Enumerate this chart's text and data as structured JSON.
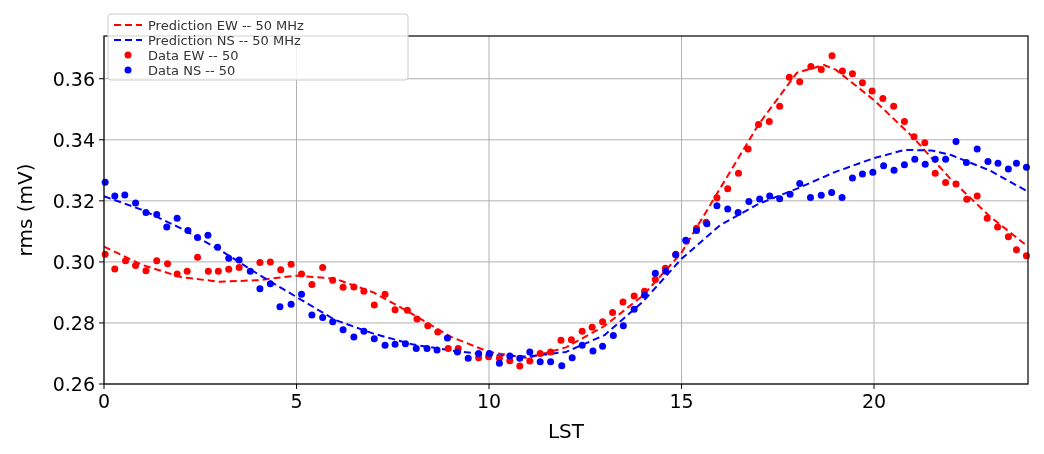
{
  "chart_data": {
    "type": "line",
    "xlabel": "LST",
    "ylabel": "rms (mV)",
    "xlim": [
      0,
      24
    ],
    "ylim": [
      0.26,
      0.374
    ],
    "xticks": [
      0,
      5,
      10,
      15,
      20
    ],
    "yticks": [
      {
        "value": 0.26,
        "label": "0.26"
      },
      {
        "value": 0.28,
        "label": "0.28"
      },
      {
        "value": 0.3,
        "label": "0.30"
      },
      {
        "value": 0.32,
        "label": "0.32"
      },
      {
        "value": 0.34,
        "label": "0.34"
      },
      {
        "value": 0.36,
        "label": "0.36"
      }
    ],
    "grid": true,
    "legend": "top left",
    "series": [
      {
        "name": "Prediction EW -- 50 MHz",
        "type": "line",
        "line_style": "dashed",
        "color": "#ff0000",
        "x": [
          0,
          1,
          2,
          3,
          4,
          5,
          6,
          7,
          8,
          9,
          10,
          11,
          12,
          13,
          14,
          15,
          16,
          17,
          18,
          18.7,
          19,
          20,
          21,
          22,
          23,
          24
        ],
        "values": [
          0.305,
          0.299,
          0.295,
          0.2935,
          0.294,
          0.2955,
          0.2945,
          0.29,
          0.283,
          0.2755,
          0.2705,
          0.2685,
          0.272,
          0.279,
          0.289,
          0.303,
          0.324,
          0.345,
          0.362,
          0.3645,
          0.363,
          0.353,
          0.341,
          0.327,
          0.315,
          0.305
        ]
      },
      {
        "name": "Prediction NS -- 50 MHz",
        "type": "line",
        "line_style": "dashed",
        "color": "#0000ff",
        "x": [
          0,
          1,
          2,
          3,
          4,
          5,
          6,
          7,
          8,
          9,
          10,
          11,
          12,
          13,
          14,
          15,
          16,
          17,
          18,
          19,
          20,
          20.8,
          21.5,
          22,
          23,
          24
        ],
        "values": [
          0.3215,
          0.317,
          0.311,
          0.304,
          0.296,
          0.2885,
          0.281,
          0.2765,
          0.273,
          0.271,
          0.2695,
          0.269,
          0.2705,
          0.276,
          0.287,
          0.301,
          0.312,
          0.319,
          0.324,
          0.3295,
          0.334,
          0.3367,
          0.3365,
          0.335,
          0.33,
          0.323
        ]
      },
      {
        "name": "Data EW -- 50",
        "type": "scatter",
        "marker": "circle",
        "color": "#ff0000",
        "x": [
          0.03,
          0.28,
          0.56,
          0.82,
          1.09,
          1.37,
          1.65,
          1.9,
          2.16,
          2.43,
          2.71,
          2.97,
          3.24,
          3.51,
          4.05,
          4.32,
          4.59,
          4.86,
          5.13,
          5.4,
          5.68,
          5.94,
          6.21,
          6.49,
          6.75,
          7.02,
          7.3,
          7.56,
          7.88,
          8.13,
          8.41,
          8.67,
          8.94,
          9.2,
          9.73,
          9.99,
          10.27,
          10.54,
          10.8,
          11.06,
          11.33,
          11.6,
          11.87,
          12.14,
          12.42,
          12.68,
          12.95,
          13.21,
          13.48,
          13.77,
          14.04,
          14.32,
          14.58,
          14.85,
          15.13,
          15.39,
          15.64,
          15.92,
          16.2,
          16.48,
          16.73,
          17,
          17.28,
          17.55,
          17.8,
          18.07,
          18.36,
          18.63,
          18.91,
          19.18,
          19.44,
          19.7,
          19.95,
          20.23,
          20.51,
          20.79,
          21.04,
          21.32,
          21.59,
          21.86,
          22.13,
          22.41,
          22.68,
          22.94,
          23.21,
          23.49,
          23.7,
          23.96
        ],
        "values": [
          0.3025,
          0.2977,
          0.3004,
          0.2988,
          0.2971,
          0.3004,
          0.2994,
          0.296,
          0.2969,
          0.3015,
          0.2969,
          0.2969,
          0.2976,
          0.2982,
          0.2998,
          0.3,
          0.2974,
          0.2992,
          0.296,
          0.2926,
          0.2982,
          0.294,
          0.2917,
          0.2918,
          0.2904,
          0.2859,
          0.2894,
          0.2843,
          0.2842,
          0.2813,
          0.2791,
          0.277,
          0.2716,
          0.2716,
          0.2686,
          0.2689,
          0.2684,
          0.2676,
          0.2659,
          0.2675,
          0.27,
          0.2705,
          0.2743,
          0.2745,
          0.2773,
          0.2786,
          0.2804,
          0.2834,
          0.2869,
          0.2888,
          0.2904,
          0.2942,
          0.2979,
          0.3025,
          0.3068,
          0.311,
          0.313,
          0.321,
          0.324,
          0.329,
          0.337,
          0.345,
          0.346,
          0.351,
          0.3605,
          0.359,
          0.364,
          0.363,
          0.3675,
          0.3625,
          0.3616,
          0.3587,
          0.356,
          0.3535,
          0.351,
          0.346,
          0.341,
          0.339,
          0.329,
          0.326,
          0.3255,
          0.3205,
          0.3216,
          0.3143,
          0.3114,
          0.3082,
          0.304,
          0.302
        ]
      },
      {
        "name": "Data NS -- 50",
        "type": "scatter",
        "marker": "circle",
        "color": "#0000ff",
        "x": [
          0.03,
          0.28,
          0.54,
          0.82,
          1.09,
          1.37,
          1.63,
          1.9,
          2.18,
          2.43,
          2.7,
          2.95,
          3.24,
          3.51,
          3.8,
          4.05,
          4.32,
          4.57,
          4.86,
          5.13,
          5.4,
          5.68,
          5.94,
          6.21,
          6.49,
          6.75,
          7.02,
          7.3,
          7.56,
          7.83,
          8.11,
          8.39,
          8.65,
          8.92,
          9.18,
          9.46,
          9.73,
          10.01,
          10.27,
          10.54,
          10.8,
          11.06,
          11.33,
          11.6,
          11.89,
          12.16,
          12.42,
          12.7,
          12.95,
          13.23,
          13.49,
          13.77,
          14.04,
          14.32,
          14.59,
          14.85,
          15.11,
          15.39,
          15.66,
          15.92,
          16.2,
          16.47,
          16.75,
          17.03,
          17.29,
          17.55,
          17.82,
          18.07,
          18.35,
          18.63,
          18.9,
          19.17,
          19.44,
          19.7,
          19.97,
          20.25,
          20.52,
          20.79,
          21.06,
          21.33,
          21.59,
          21.86,
          22.13,
          22.4,
          22.68,
          22.96,
          23.22,
          23.49,
          23.7,
          23.96
        ],
        "values": [
          0.3261,
          0.3216,
          0.3219,
          0.3193,
          0.3162,
          0.3155,
          0.3114,
          0.3143,
          0.3103,
          0.308,
          0.3087,
          0.3048,
          0.3012,
          0.3006,
          0.2969,
          0.2912,
          0.2928,
          0.2853,
          0.2861,
          0.2894,
          0.2826,
          0.2818,
          0.2804,
          0.2778,
          0.2754,
          0.2773,
          0.2748,
          0.2727,
          0.273,
          0.2732,
          0.2716,
          0.2716,
          0.2711,
          0.2751,
          0.2705,
          0.2684,
          0.27,
          0.27,
          0.2668,
          0.2692,
          0.2684,
          0.2705,
          0.2673,
          0.2673,
          0.266,
          0.2686,
          0.2727,
          0.2708,
          0.2724,
          0.2759,
          0.2791,
          0.2845,
          0.2891,
          0.2963,
          0.2969,
          0.3023,
          0.3071,
          0.3103,
          0.3125,
          0.3184,
          0.3173,
          0.3162,
          0.3198,
          0.3206,
          0.3216,
          0.3207,
          0.3222,
          0.3257,
          0.3211,
          0.3218,
          0.3227,
          0.3211,
          0.3275,
          0.3288,
          0.3294,
          0.3315,
          0.33,
          0.3318,
          0.3336,
          0.332,
          0.3336,
          0.3336,
          0.3394,
          0.3326,
          0.337,
          0.3329,
          0.3323,
          0.3304,
          0.3323,
          0.331
        ]
      }
    ]
  }
}
